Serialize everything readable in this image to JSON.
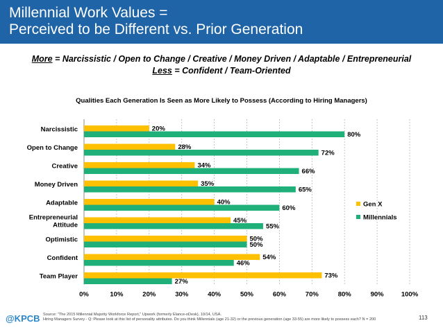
{
  "header": {
    "title_line1": "Millennial Work Values =",
    "title_line2": "Perceived to be Different vs. Prior Generation"
  },
  "subtitle": {
    "line1_key": "More",
    "line1_rest": " = Narcissistic / Open to Change / Creative / Money Driven / Adaptable / Entrepreneurial",
    "line2_key": "Less",
    "line2_rest": " = Confident / Team-Oriented"
  },
  "chart_data": {
    "type": "bar",
    "orientation": "horizontal",
    "title": "Qualities Each Generation Is Seen as More Likely to Possess (According to Hiring Managers)",
    "categories": [
      "Narcissistic",
      "Open to Change",
      "Creative",
      "Money Driven",
      "Adaptable",
      "Entrepreneurial Attitude",
      "Optimistic",
      "Confident",
      "Team Player"
    ],
    "series": [
      {
        "name": "Gen X",
        "color": "#ffc000",
        "values": [
          20,
          28,
          34,
          35,
          40,
          45,
          50,
          54,
          73
        ]
      },
      {
        "name": "Millennials",
        "color": "#1fb07a",
        "values": [
          80,
          72,
          66,
          65,
          60,
          55,
          50,
          46,
          27
        ]
      }
    ],
    "value_suffix": "%",
    "xlim": [
      0,
      100
    ],
    "xticks": [
      "0%",
      "10%",
      "20%",
      "30%",
      "40%",
      "50%",
      "60%",
      "70%",
      "80%",
      "90%",
      "100%"
    ],
    "grid": true,
    "legend": "right"
  },
  "footer": {
    "logo": "@KPCB",
    "source_line1": "Source: \"The 2015 Millennial Majority Workforce Report,\" Upwork (formerly Elance-oDesk), 10/14, USA.",
    "source_line2": "Hiring Managers Survey - Q: Please look at this list of personality attributes. Do you think Millennials (age 21-32) or the previous generation (age 33-55) are more likely to possess each? N = 200",
    "page_number": "113"
  }
}
